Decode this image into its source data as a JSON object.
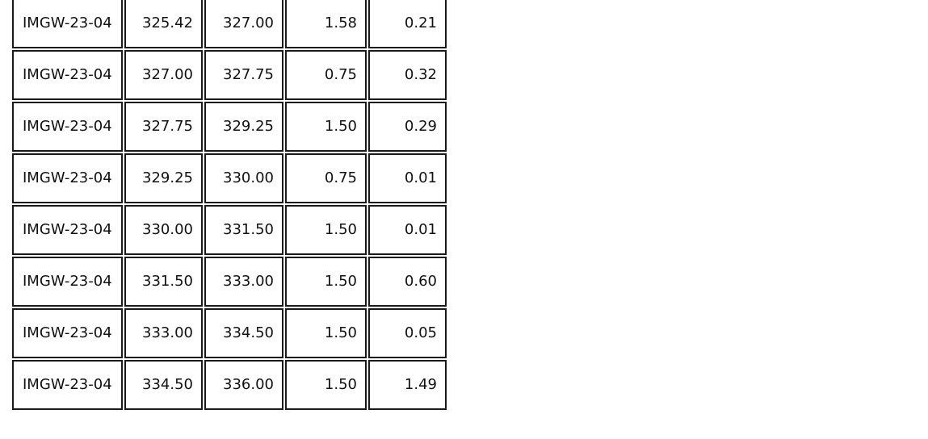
{
  "rows": [
    {
      "id": "IMGW-23-04",
      "from": "325.42",
      "to": "327.00",
      "length": "1.58",
      "value": "0.21"
    },
    {
      "id": "IMGW-23-04",
      "from": "327.00",
      "to": "327.75",
      "length": "0.75",
      "value": "0.32"
    },
    {
      "id": "IMGW-23-04",
      "from": "327.75",
      "to": "329.25",
      "length": "1.50",
      "value": "0.29"
    },
    {
      "id": "IMGW-23-04",
      "from": "329.25",
      "to": "330.00",
      "length": "0.75",
      "value": "0.01"
    },
    {
      "id": "IMGW-23-04",
      "from": "330.00",
      "to": "331.50",
      "length": "1.50",
      "value": "0.01"
    },
    {
      "id": "IMGW-23-04",
      "from": "331.50",
      "to": "333.00",
      "length": "1.50",
      "value": "0.60"
    },
    {
      "id": "IMGW-23-04",
      "from": "333.00",
      "to": "334.50",
      "length": "1.50",
      "value": "0.05"
    },
    {
      "id": "IMGW-23-04",
      "from": "334.50",
      "to": "336.00",
      "length": "1.50",
      "value": "1.49"
    }
  ]
}
